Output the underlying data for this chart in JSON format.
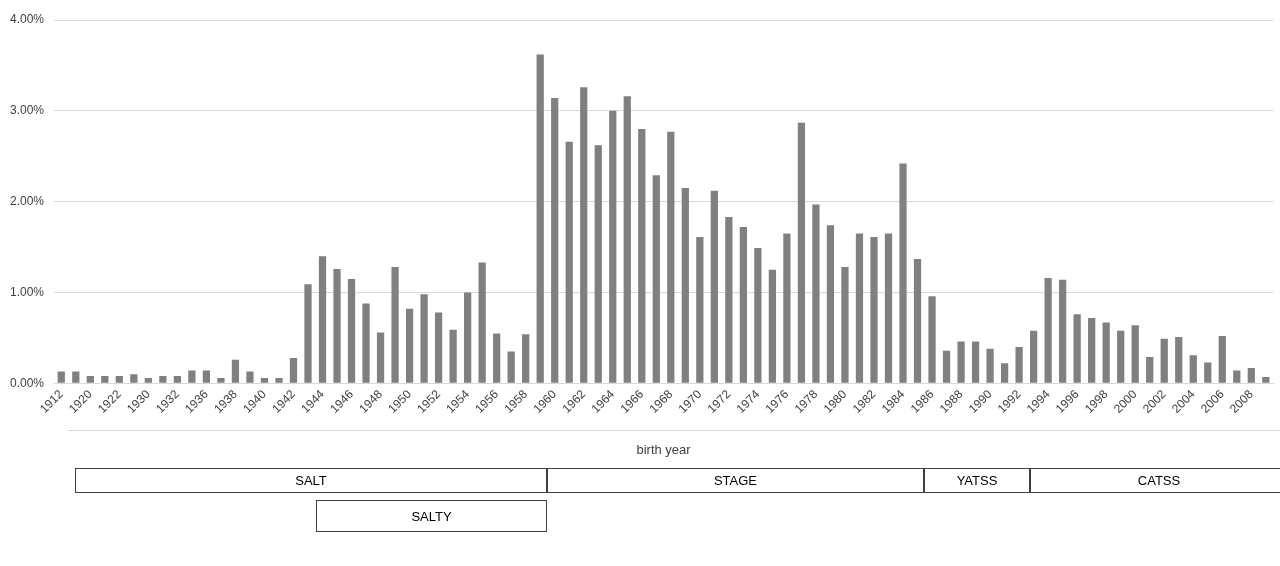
{
  "chart_data": {
    "type": "bar",
    "xlabel": "birth year",
    "categories": [
      "1912",
      null,
      "1920",
      null,
      "1922",
      null,
      "1930",
      null,
      "1932",
      null,
      "1936",
      null,
      "1938",
      null,
      "1940",
      null,
      "1942",
      null,
      "1944",
      null,
      "1946",
      null,
      "1948",
      null,
      "1950",
      null,
      "1952",
      null,
      "1954",
      null,
      "1956",
      null,
      "1958",
      null,
      "1960",
      null,
      "1962",
      null,
      "1964",
      null,
      "1966",
      null,
      "1968",
      null,
      "1970",
      null,
      "1972",
      null,
      "1974",
      null,
      "1976",
      null,
      "1978",
      null,
      "1980",
      null,
      "1982",
      null,
      "1984",
      null,
      "1986",
      null,
      "1988",
      null,
      "1990",
      null,
      "1992",
      null,
      "1994",
      null,
      "1996",
      null,
      "1998",
      null,
      "2000",
      null,
      "2002",
      null,
      "2004",
      null,
      "2006",
      null,
      "2008",
      null
    ],
    "values": [
      0.13,
      0.13,
      0.08,
      0.08,
      0.08,
      0.1,
      0.06,
      0.08,
      0.08,
      0.14,
      0.14,
      0.06,
      0.26,
      0.13,
      0.06,
      0.06,
      0.28,
      1.09,
      1.4,
      1.26,
      1.15,
      0.88,
      0.56,
      1.28,
      0.82,
      0.98,
      0.78,
      0.59,
      1.0,
      1.33,
      0.55,
      0.35,
      0.54,
      3.62,
      3.14,
      2.66,
      3.26,
      2.62,
      3.0,
      3.16,
      2.8,
      2.29,
      2.77,
      2.15,
      1.61,
      2.12,
      1.83,
      1.72,
      1.49,
      1.25,
      1.65,
      2.87,
      1.97,
      1.74,
      1.28,
      1.65,
      1.61,
      1.65,
      2.42,
      1.37,
      0.96,
      0.36,
      0.46,
      0.46,
      0.38,
      0.22,
      0.4,
      0.58,
      1.16,
      1.14,
      0.76,
      0.72,
      0.67,
      0.58,
      0.64,
      0.29,
      0.49,
      0.51,
      0.31,
      0.23,
      0.52,
      0.14,
      0.17,
      0.07
    ],
    "color": "#808080",
    "ylim": [
      0,
      4
    ],
    "yticks": [
      {
        "value": 0,
        "label": "0.00%"
      },
      {
        "value": 1,
        "label": "1.00%"
      },
      {
        "value": 2,
        "label": "2.00%"
      },
      {
        "value": 3,
        "label": "3.00%"
      },
      {
        "value": 4,
        "label": "4.00%"
      }
    ],
    "grid": "y",
    "legend": false,
    "annotations": [
      "SALT",
      "STAGE",
      "YATSS",
      "CATSS",
      "SALTY"
    ]
  }
}
